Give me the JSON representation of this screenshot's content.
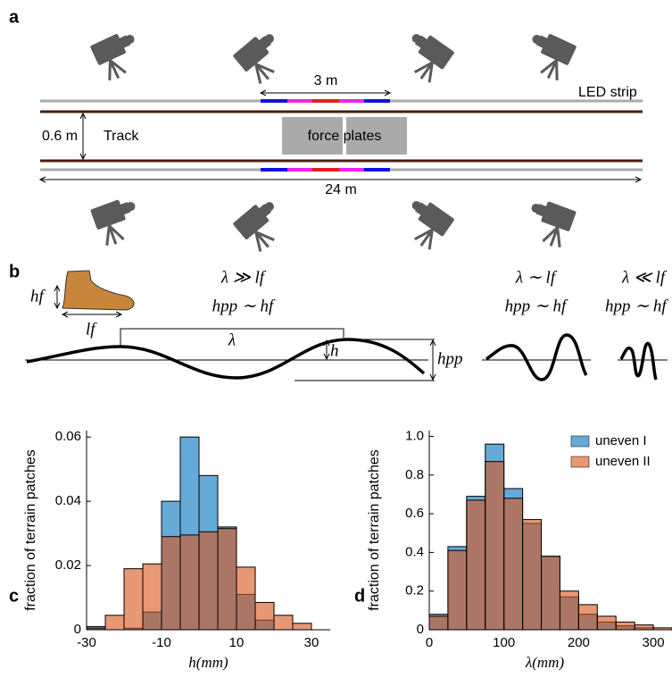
{
  "panel_a": {
    "label": "a",
    "led_span": "3 m",
    "led_label": "LED strip",
    "track_width": "0.6 m",
    "track_label": "Track",
    "plates_label": "force plates",
    "track_length": "24 m"
  },
  "panel_b": {
    "label": "b",
    "foot_height": "hf",
    "foot_length": "lf",
    "wavelength": "λ",
    "amplitude": "h",
    "peak_to_peak": "hpp",
    "cases": [
      {
        "wavelength": "λ ≫ lf",
        "height": "hpp ∼ hf"
      },
      {
        "wavelength": "λ ∼ lf",
        "height": "hpp ∼ hf"
      },
      {
        "wavelength": "λ ≪ lf",
        "height": "hpp ∼ hf"
      }
    ]
  },
  "chart_data": [
    {
      "type": "histogram",
      "panel": "c",
      "xlabel": "h(mm)",
      "ylabel": "fraction of terrain patches",
      "bins": [
        -30,
        -25,
        -20,
        -15,
        -10,
        -5,
        0,
        5,
        10,
        15,
        20,
        25,
        30
      ],
      "series": [
        {
          "color": "#0072bd",
          "values": [
            0.001,
            0,
            0.0005,
            0.0055,
            0.04,
            0.06,
            0.048,
            0.032,
            0.011,
            0.003,
            0,
            0
          ]
        },
        {
          "color": "#d95319",
          "values": [
            0.0005,
            0.0045,
            0.019,
            0.0205,
            0.029,
            0.0295,
            0.0305,
            0.0315,
            0.0195,
            0.0085,
            0.0045,
            0.002
          ]
        }
      ],
      "xlim": [
        -30,
        35
      ],
      "xticks": [
        -30,
        -10,
        10,
        30
      ],
      "ylim": [
        0,
        0.062
      ],
      "yticks": [
        0,
        0.02,
        0.04,
        0.06
      ]
    },
    {
      "type": "histogram",
      "panel": "d",
      "xlabel": "λ(mm)",
      "ylabel": "fraction of terrain patches",
      "bins": [
        0,
        25,
        50,
        75,
        100,
        125,
        150,
        175,
        200,
        225,
        250,
        275,
        300,
        325
      ],
      "series": [
        {
          "name": "uneven I",
          "color": "#0072bd",
          "values": [
            0.08,
            0.43,
            0.69,
            0.96,
            0.73,
            0.55,
            0.38,
            0.17,
            0.08,
            0.04,
            0.02,
            0.01,
            0
          ]
        },
        {
          "name": "uneven II",
          "color": "#d95319",
          "values": [
            0.07,
            0.41,
            0.67,
            0.87,
            0.68,
            0.57,
            0.38,
            0.2,
            0.13,
            0.07,
            0.04,
            0.025,
            0.01
          ]
        }
      ],
      "xlim": [
        0,
        325
      ],
      "xticks": [
        0,
        100,
        200,
        300
      ],
      "ylim": [
        0,
        1.03
      ],
      "yticks": [
        0,
        0.2,
        0.4,
        0.6,
        0.8,
        {
          "value": 1,
          "label": "1.0"
        }
      ],
      "legend": "upper right"
    }
  ]
}
